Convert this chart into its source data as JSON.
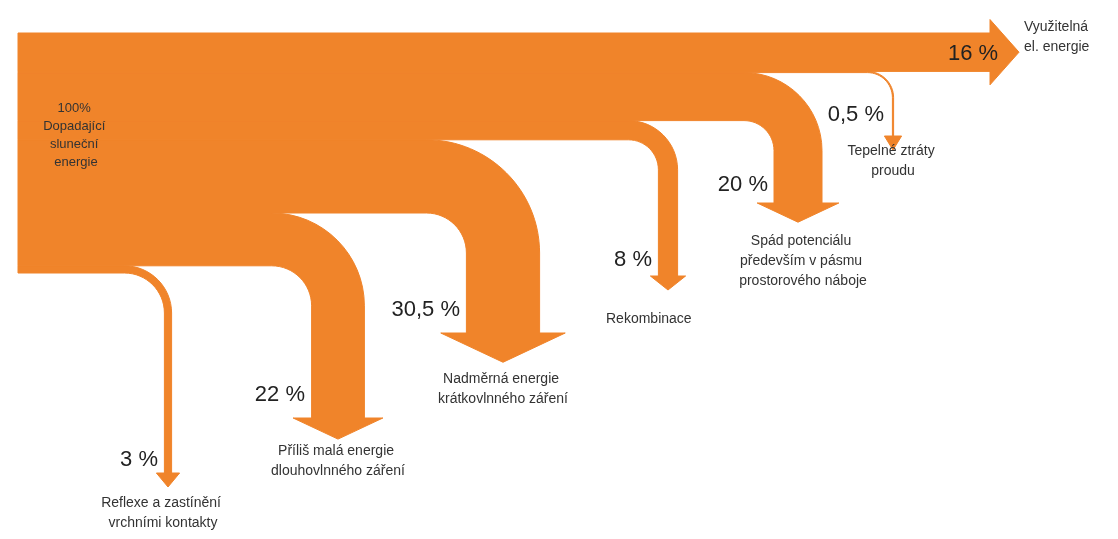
{
  "chart_data": {
    "type": "other",
    "color": "#f0842a",
    "annotations": [
      "100% Dopadající sluneční energie"
    ],
    "categories": [
      "Reflexe a zastínění vrchními kontakty",
      "Příliš malá energie dlouhovlnného záření",
      "Nadměrná energie krátkovlnného záření",
      "Rekombinace",
      "Spád potenciálu především v pásmu prostorového náboje",
      "Tepelné ztráty proudu",
      "Využitelná el. energie"
    ],
    "values": [
      3,
      22,
      30.5,
      8,
      20,
      0.5,
      16
    ],
    "value_labels": [
      "3 %",
      "22 %",
      "30,5 %",
      "8 %",
      "20 %",
      "0,5 %",
      "16 %"
    ]
  }
}
